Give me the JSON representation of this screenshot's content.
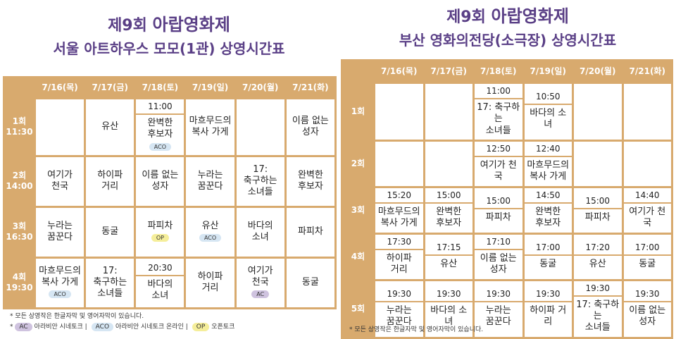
{
  "left": {
    "title_prefix": "제9회 ",
    "title_main": "아랍영화제",
    "subtitle": "서울 아트하우스 모모(1관) 상영시간표",
    "days": [
      "7/16(목)",
      "7/17(금)",
      "7/18(토)",
      "7/19(일)",
      "7/20(월)",
      "7/21(화)"
    ],
    "rows": [
      {
        "label": "1회",
        "time": "11:30",
        "cells": [
          {
            "film": ""
          },
          {
            "film": "유산"
          },
          {
            "time": "11:00",
            "film": "완벽한\n후보자",
            "badge": "ACO"
          },
          {
            "film": "마흐무드의\n복사 가게"
          },
          {
            "film": ""
          },
          {
            "film": "이름 없는\n성자"
          }
        ]
      },
      {
        "label": "2회",
        "time": "14:00",
        "cells": [
          {
            "film": "여기가\n천국"
          },
          {
            "film": "하이파\n거리"
          },
          {
            "film": "이름 없는\n성자"
          },
          {
            "film": "누라는\n꿈꾼다"
          },
          {
            "film": "17:\n축구하는\n소녀들"
          },
          {
            "film": "완벽한\n후보자"
          }
        ]
      },
      {
        "label": "3회",
        "time": "16:30",
        "cells": [
          {
            "film": "누라는\n꿈꾼다"
          },
          {
            "film": "동굴"
          },
          {
            "film": "파피차",
            "badge": "OP"
          },
          {
            "film": "유산",
            "badge": "ACO"
          },
          {
            "film": "바다의\n소녀"
          },
          {
            "film": "파피차"
          }
        ]
      },
      {
        "label": "4회",
        "time": "19:30",
        "cells": [
          {
            "film": "마흐무드의\n복사 가게",
            "badge": "ACO"
          },
          {
            "film": "17:\n축구하는\n소녀들"
          },
          {
            "time": "20:30",
            "film": "바다의\n소녀"
          },
          {
            "film": "하이파\n거리"
          },
          {
            "film": "여기가\n천국",
            "badge": "AC"
          },
          {
            "film": "동굴"
          }
        ]
      }
    ],
    "footnote": "* 모든 상영작은 한글자막 및 영어자막이 있습니다.",
    "legend": [
      {
        "code": "AC",
        "text": "아라비안 시네토크 |"
      },
      {
        "code": "ACO",
        "text": "아라비안 시네토크 온라인 |"
      },
      {
        "code": "OP",
        "text": "오픈토크"
      }
    ]
  },
  "right": {
    "title_prefix": "제9회 ",
    "title_main": "아랍영화제",
    "subtitle": "부산 영화의전당(소극장) 상영시간표",
    "days": [
      "7/16(목)",
      "7/17(금)",
      "7/18(토)",
      "7/19(일)",
      "7/20(월)",
      "7/21(화)"
    ],
    "rows": [
      {
        "label": "1회",
        "cells": [
          {
            "film": ""
          },
          {
            "film": ""
          },
          {
            "time": "11:00",
            "film": "17: 축구하는\n소녀들"
          },
          {
            "time": "10:50",
            "film": "바다의 소녀"
          },
          {
            "film": ""
          },
          {
            "film": ""
          }
        ]
      },
      {
        "label": "2회",
        "cells": [
          {
            "film": ""
          },
          {
            "film": ""
          },
          {
            "time": "12:50",
            "film": "여기가 천국"
          },
          {
            "time": "12:40",
            "film": "마흐무드의\n복사 가게"
          },
          {
            "film": ""
          },
          {
            "film": ""
          }
        ]
      },
      {
        "label": "3회",
        "cells": [
          {
            "time": "15:20",
            "film": "마흐무드의\n복사 가게"
          },
          {
            "time": "15:00",
            "film": "완벽한\n후보자"
          },
          {
            "time": "15:00",
            "film": "파피차"
          },
          {
            "time": "14:50",
            "film": "완벽한\n후보자"
          },
          {
            "time": "15:00",
            "film": "파피차"
          },
          {
            "time": "14:40",
            "film": "여기가 천국"
          }
        ]
      },
      {
        "label": "4회",
        "cells": [
          {
            "time": "17:30",
            "film": "하이파\n거리"
          },
          {
            "time": "17:15",
            "film": "유산"
          },
          {
            "time": "17:10",
            "film": "이름 없는\n성자"
          },
          {
            "time": "17:00",
            "film": "동굴"
          },
          {
            "time": "17:20",
            "film": "유산"
          },
          {
            "time": "17:00",
            "film": "동굴"
          }
        ]
      },
      {
        "label": "5회",
        "cells": [
          {
            "time": "19:30",
            "film": "누라는\n꿈꾼다"
          },
          {
            "time": "19:30",
            "film": "바다의 소녀"
          },
          {
            "time": "19:30",
            "film": "누라는\n꿈꾼다"
          },
          {
            "time": "19:30",
            "film": "하이파 거리"
          },
          {
            "time": "19:30",
            "film": "17: 축구하는\n소녀들"
          },
          {
            "time": "19:30",
            "film": "이름 없는\n성자"
          }
        ]
      }
    ],
    "footnote": "* 모든 상영작은 한글자막 및 영어자막이 있습니다."
  },
  "colors": {
    "grid": "#d8aa6e",
    "title": "#5a3f86",
    "badge_aco": "#d6e6f3",
    "badge_ac": "#cfc3df",
    "badge_op": "#f5ee9a"
  }
}
